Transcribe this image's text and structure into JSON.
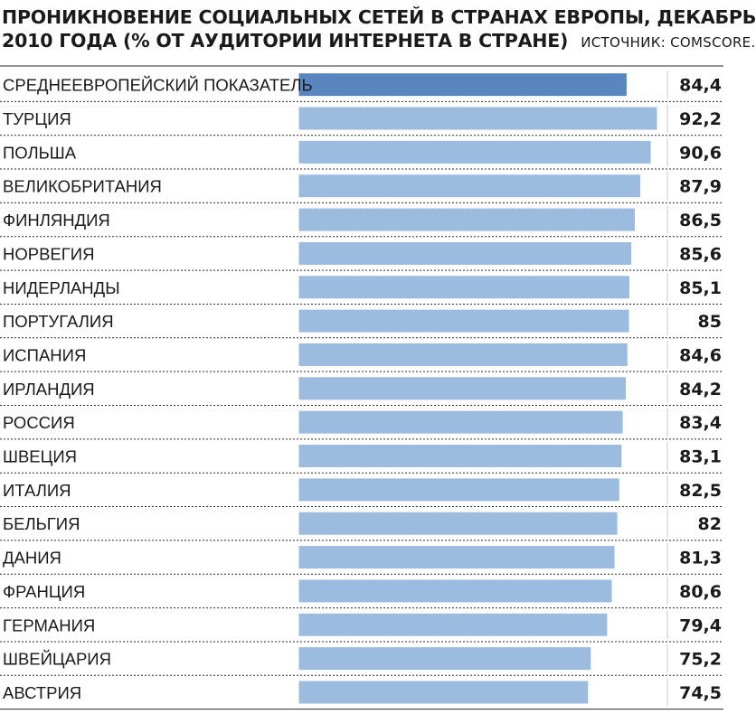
{
  "header": {
    "title_line1": "ПРОНИКНОВЕНИЕ СОЦИАЛЬНЫХ СЕТЕЙ В СТРАНАХ ЕВРОПЫ, ДЕКАБРЬ",
    "title_line2": "2010 ГОДА (% ОТ АУДИТОРИИ ИНТЕРНЕТА В СТРАНЕ)",
    "source": "ИСТОЧНИК: COMSCORE."
  },
  "colors": {
    "average_bar": "#5a86bf",
    "bar": "#9cbcdf",
    "bar_border": "#ffffff",
    "row_divider": "#2a2a2a"
  },
  "chart_data": {
    "type": "bar",
    "orientation": "horizontal",
    "title": "ПРОНИКНОВЕНИЕ СОЦИАЛЬНЫХ СЕТЕЙ В СТРАНАХ ЕВРОПЫ, ДЕКАБРЬ 2010 ГОДА (% ОТ АУДИТОРИИ ИНТЕРНЕТА В СТРАНЕ)",
    "source": "ИСТОЧНИК: COMSCORE.",
    "categories": [
      "СРЕДНЕЕВРОПЕЙСКИЙ ПОКАЗАТЕЛЬ",
      "ТУРЦИЯ",
      "ПОЛЬША",
      "ВЕЛИКОБРИТАНИЯ",
      "ФИНЛЯНДИЯ",
      "НОРВЕГИЯ",
      "НИДЕРЛАНДЫ",
      "ПОРТУГАЛИЯ",
      "ИСПАНИЯ",
      "ИРЛАНДИЯ",
      "РОССИЯ",
      "ШВЕЦИЯ",
      "ИТАЛИЯ",
      "БЕЛЬГИЯ",
      "ДАНИЯ",
      "ФРАНЦИЯ",
      "ГЕРМАНИЯ",
      "ШВЕЙЦАРИЯ",
      "АВСТРИЯ"
    ],
    "values": [
      84.4,
      92.2,
      90.6,
      87.9,
      86.5,
      85.6,
      85.1,
      85,
      84.6,
      84.2,
      83.4,
      83.1,
      82.5,
      82,
      81.3,
      80.6,
      79.4,
      75.2,
      74.5
    ],
    "value_labels": [
      "84,4",
      "92,2",
      "90,6",
      "87,9",
      "86,5",
      "85,6",
      "85,1",
      "85",
      "84,6",
      "84,2",
      "83,4",
      "83,1",
      "82,5",
      "82",
      "81,3",
      "80,6",
      "79,4",
      "75,2",
      "74,5"
    ],
    "highlight_index": 0,
    "xlim": [
      0,
      92.2
    ],
    "grid": false,
    "legend": "none"
  }
}
